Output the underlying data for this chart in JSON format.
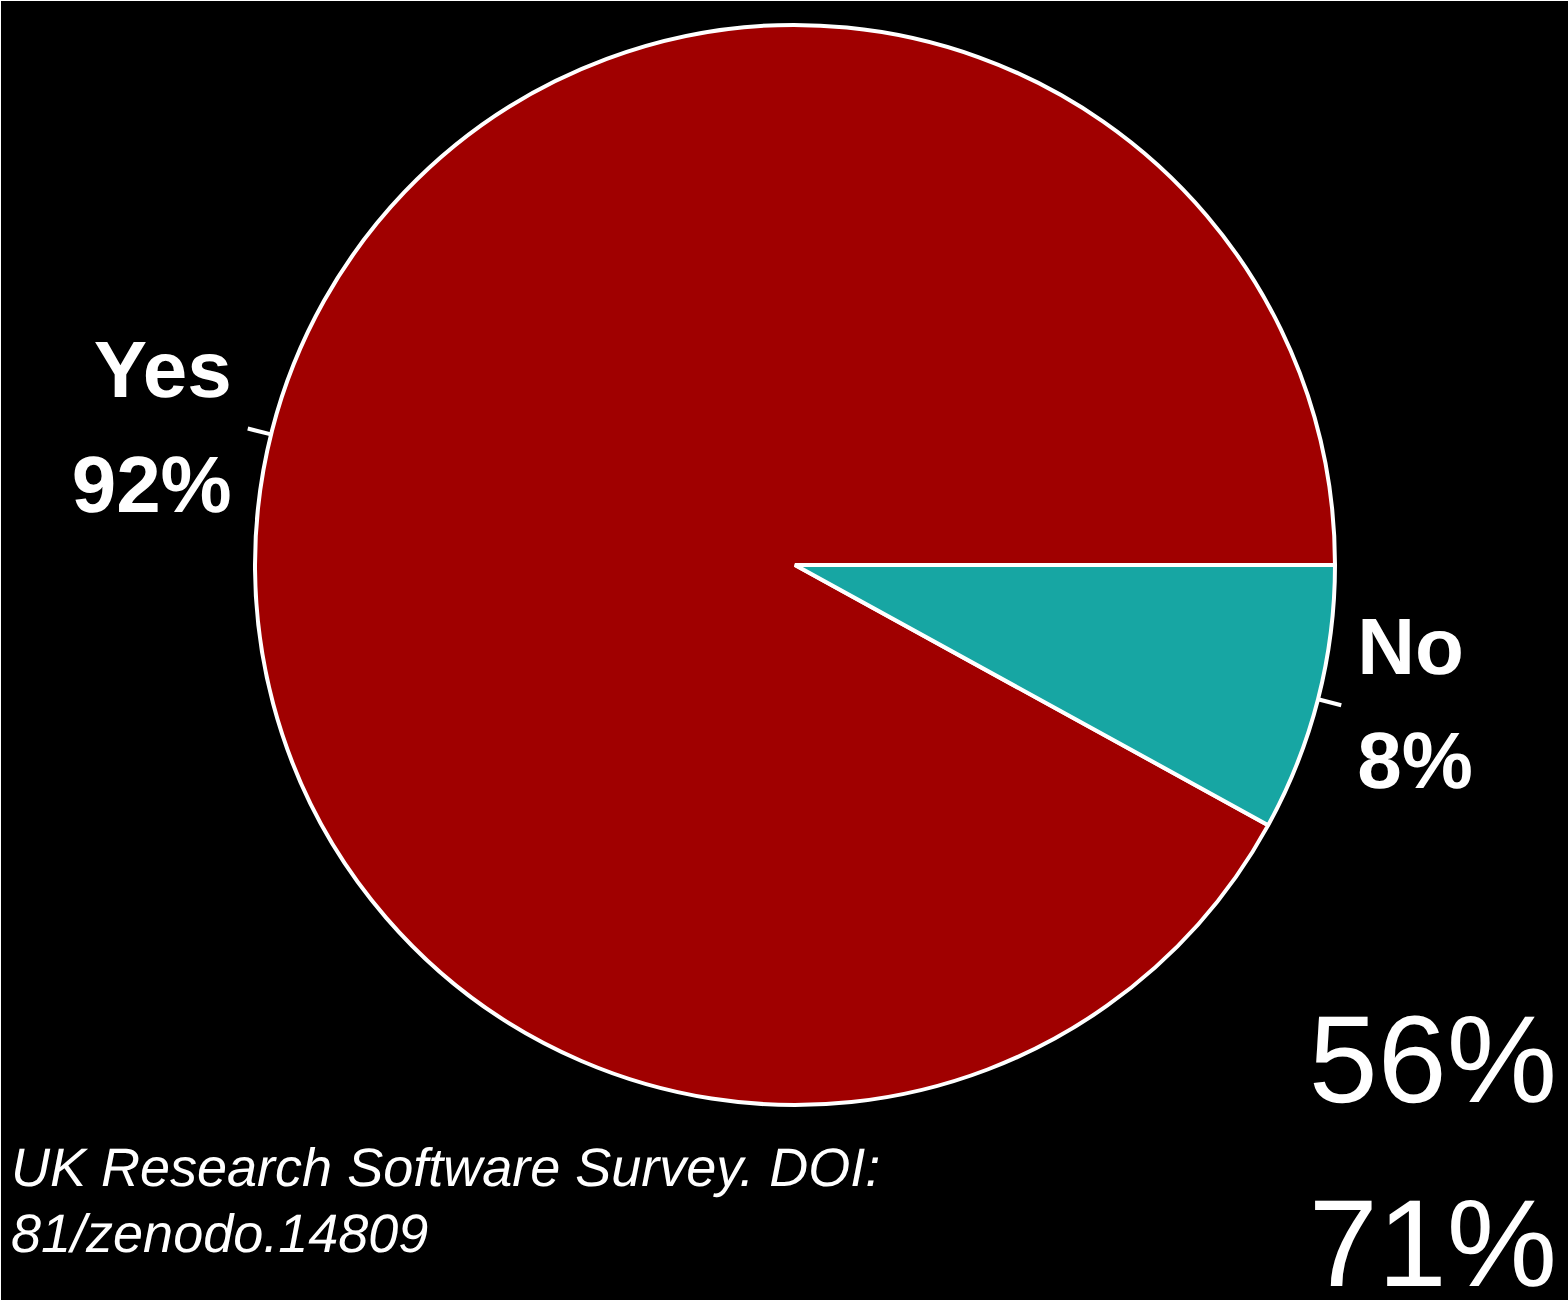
{
  "chart_data": {
    "type": "pie",
    "categories": [
      "Yes",
      "No"
    ],
    "values": [
      92,
      8
    ],
    "value_labels": [
      "92%",
      "8%"
    ],
    "colors": [
      "#a00000",
      "#17a6a3"
    ],
    "annotations": [
      "UK Research Software Survey. DOI:\n81/zenodo.14809",
      "56%",
      "71%"
    ]
  }
}
